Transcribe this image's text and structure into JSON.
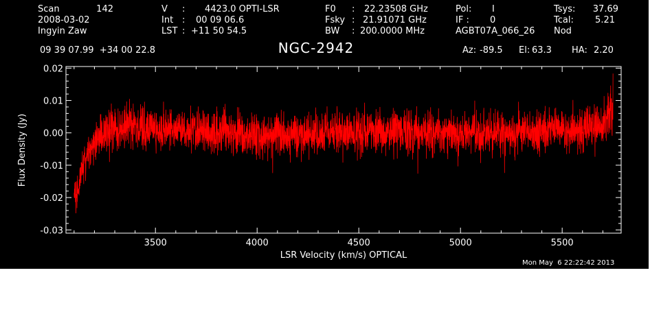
{
  "header": {
    "scan_label": "Scan",
    "scan_value": "142",
    "date": "2008-03-02",
    "observer": "Ingyin Zaw",
    "velocity_label": "V",
    "velocity_sep": ":",
    "velocity_value": "4423.0 OPTI-LSR",
    "int_label": "Int",
    "int_sep": ":",
    "int_value": "00 09 06.6",
    "lst_label": "LST",
    "lst_sep": ":",
    "lst_value": "+11 50 54.5",
    "f0_label": "F0",
    "f0_sep": ":",
    "f0_value": "22.23508 GHz",
    "fsky_label": "Fsky",
    "fsky_sep": ":",
    "fsky_value": "21.91071 GHz",
    "bw_label": "BW",
    "bw_sep": ":",
    "bw_value": "200.0000 MHz",
    "pol_label": "Pol:",
    "pol_value": "I",
    "if_label": "IF :",
    "if_value": "0",
    "project": "AGBT07A_066_26",
    "tsys_label": "Tsys:",
    "tsys_value": "37.69",
    "tcal_label": "Tcal:",
    "tcal_value": "5.21",
    "procedure": "Nod",
    "coords": "09 39 07.99  +34 00 22.8",
    "source": "NGC-2942",
    "az_label": "Az:",
    "az_value": "-89.5",
    "el_label": "El:",
    "el_value": "63.3",
    "ha_label": "HA:",
    "ha_value": "2.20",
    "timestamp": "Mon May  6 22:22:42 2013"
  },
  "colors": {
    "background": "#000000",
    "axes": "#ffffff",
    "series": "#ff0000"
  },
  "chart_data": {
    "type": "line",
    "title": "NGC-2942",
    "xlabel": "LSR Velocity (km/s) OPTICAL",
    "ylabel": "Flux Density (Jy)",
    "xlim": [
      3060,
      5790
    ],
    "ylim": [
      -0.031,
      0.0205
    ],
    "xticks": [
      3500,
      4000,
      4500,
      5000,
      5500
    ],
    "xtick_labels": [
      "3500",
      "4000",
      "4500",
      "5000",
      "5500"
    ],
    "yticks": [
      -0.03,
      -0.02,
      -0.01,
      0.0,
      0.01,
      0.02
    ],
    "ytick_labels": [
      "-0.03",
      "-0.02",
      "-0.01",
      "0.00",
      "0.01",
      "0.02"
    ],
    "grid": false,
    "series": [
      {
        "x": [
          3100,
          3110,
          3120,
          3130,
          3140,
          3150,
          3160,
          3170,
          3180,
          3190,
          3200,
          3220,
          3240,
          3260,
          3280,
          3300,
          3350,
          3400,
          3450,
          3500,
          3550,
          3600,
          3650,
          3700,
          3750,
          3800,
          3850,
          3900,
          3950,
          4000,
          4050,
          4100,
          4150,
          4200,
          4250,
          4300,
          4350,
          4400,
          4450,
          4500,
          4550,
          4600,
          4650,
          4700,
          4750,
          4800,
          4850,
          4900,
          4950,
          5000,
          5050,
          5100,
          5150,
          5200,
          5250,
          5300,
          5350,
          5400,
          5450,
          5500,
          5550,
          5600,
          5650,
          5700,
          5720,
          5740,
          5750
        ],
        "values": [
          -0.018,
          -0.02,
          -0.017,
          -0.014,
          -0.011,
          -0.009,
          -0.008,
          -0.006,
          -0.005,
          -0.004,
          -0.003,
          -0.002,
          -0.001,
          0.0,
          0.001,
          0.001,
          0.002,
          0.002,
          0.001,
          0.002,
          0.001,
          0.001,
          0.0,
          0.001,
          0.0,
          0.0,
          0.001,
          0.0,
          -0.001,
          0.0,
          -0.001,
          0.0,
          -0.001,
          0.0,
          0.0,
          -0.001,
          0.0,
          0.0,
          0.0,
          0.0,
          0.001,
          0.001,
          0.0,
          0.001,
          0.001,
          0.0,
          0.0,
          0.001,
          0.0,
          -0.001,
          0.0,
          0.0,
          0.0,
          0.0,
          -0.001,
          0.0,
          0.0,
          0.001,
          0.001,
          0.001,
          0.0,
          0.001,
          0.002,
          0.002,
          0.004,
          0.007,
          0.01
        ],
        "noise_rms": 0.0045
      }
    ]
  }
}
